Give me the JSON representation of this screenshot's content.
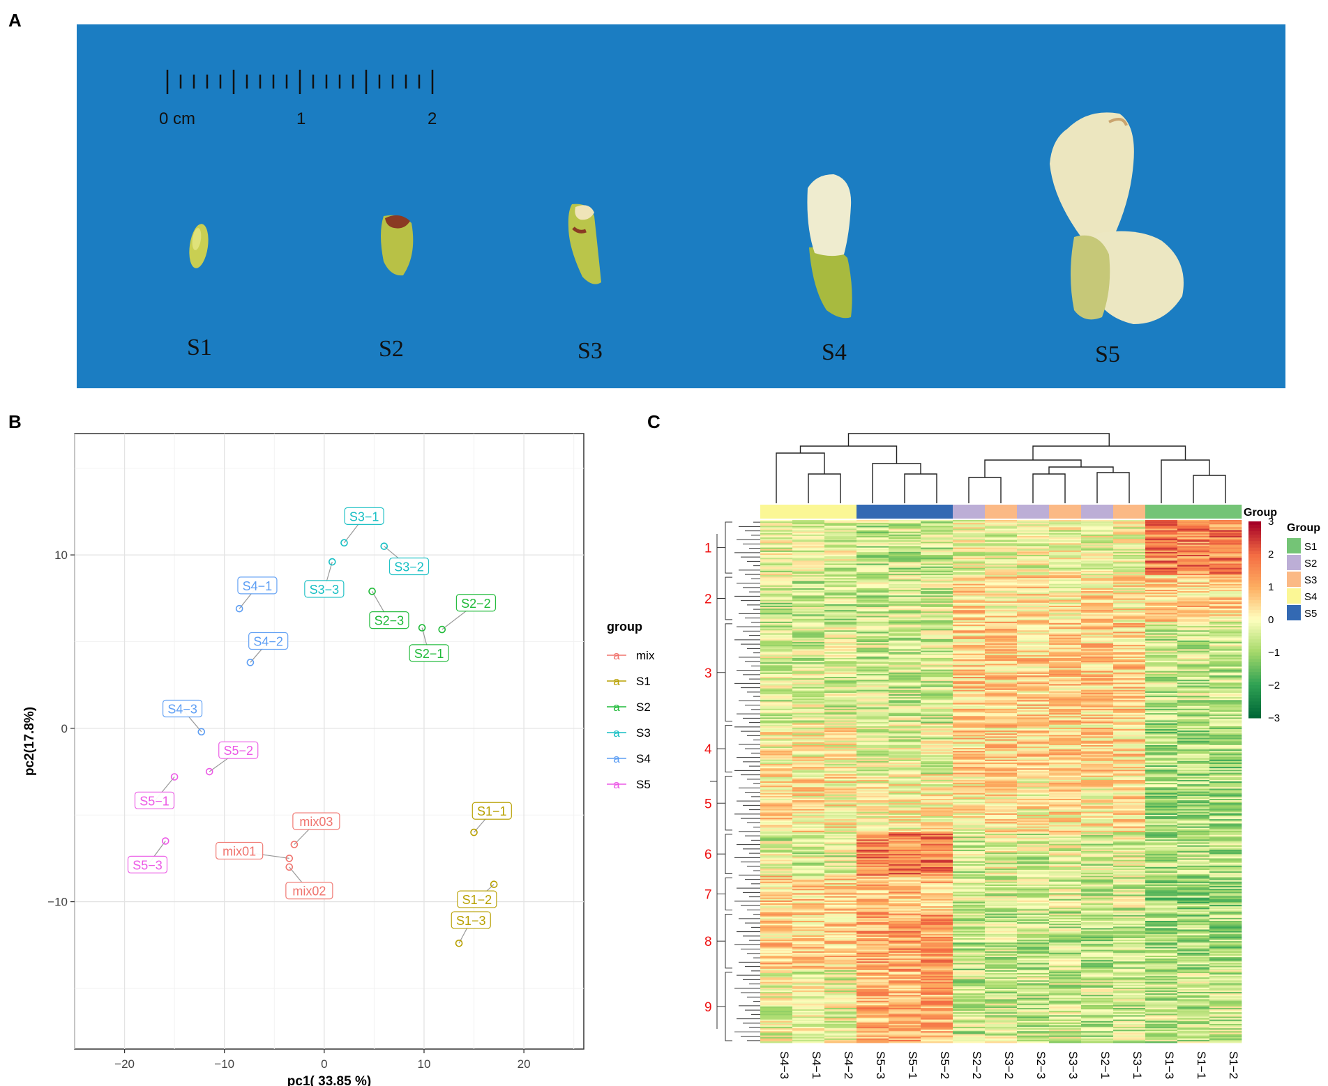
{
  "panels": {
    "a": "A",
    "b": "B",
    "c": "C"
  },
  "photo": {
    "background_color": "#1b7dc2",
    "scale": {
      "ticks": [
        "0 cm",
        "1",
        "2"
      ]
    },
    "stages": [
      "S1",
      "S2",
      "S3",
      "S4",
      "S5"
    ]
  },
  "chart_data": [
    {
      "type": "scatter",
      "title": "",
      "xlabel": "pc1( 33.85 %)",
      "ylabel": "pc2(17.8%)",
      "xlim": [
        -25,
        26
      ],
      "ylim": [
        -18.5,
        17
      ],
      "xticks": [
        -20,
        -10,
        0,
        10,
        20
      ],
      "yticks": [
        -10,
        0,
        10
      ],
      "grid": true,
      "legend": {
        "title": "group",
        "position": "right",
        "entries": [
          {
            "name": "mix",
            "symbol": "a",
            "color": "#f0736d"
          },
          {
            "name": "S1",
            "symbol": "a",
            "color": "#b8a000"
          },
          {
            "name": "S2",
            "symbol": "a",
            "color": "#1fba38"
          },
          {
            "name": "S3",
            "symbol": "a",
            "color": "#17bfc4"
          },
          {
            "name": "S4",
            "symbol": "a",
            "color": "#5d9ef4"
          },
          {
            "name": "S5",
            "symbol": "a",
            "color": "#ec59e6"
          }
        ]
      },
      "points": [
        {
          "label": "S3−1",
          "group": "S3",
          "x": 2.0,
          "y": 10.7,
          "lx": 4.0,
          "ly": 12.2
        },
        {
          "label": "S3−2",
          "group": "S3",
          "x": 6.0,
          "y": 10.5,
          "lx": 8.5,
          "ly": 9.3
        },
        {
          "label": "S3−3",
          "group": "S3",
          "x": 0.8,
          "y": 9.6,
          "lx": 0.0,
          "ly": 8.0
        },
        {
          "label": "S2−2",
          "group": "S2",
          "x": 11.8,
          "y": 5.7,
          "lx": 15.2,
          "ly": 7.2
        },
        {
          "label": "S2−3",
          "group": "S2",
          "x": 4.8,
          "y": 7.9,
          "lx": 6.5,
          "ly": 6.2
        },
        {
          "label": "S2−1",
          "group": "S2",
          "x": 9.8,
          "y": 5.8,
          "lx": 10.5,
          "ly": 4.3
        },
        {
          "label": "S4−1",
          "group": "S4",
          "x": -8.5,
          "y": 6.9,
          "lx": -6.7,
          "ly": 8.2
        },
        {
          "label": "S4−2",
          "group": "S4",
          "x": -7.4,
          "y": 3.8,
          "lx": -5.6,
          "ly": 5.0
        },
        {
          "label": "S4−3",
          "group": "S4",
          "x": -12.3,
          "y": -0.2,
          "lx": -14.2,
          "ly": 1.1
        },
        {
          "label": "S5−2",
          "group": "S5",
          "x": -11.5,
          "y": -2.5,
          "lx": -8.6,
          "ly": -1.3
        },
        {
          "label": "S5−1",
          "group": "S5",
          "x": -15.0,
          "y": -2.8,
          "lx": -17.0,
          "ly": -4.2
        },
        {
          "label": "S5−3",
          "group": "S5",
          "x": -15.9,
          "y": -6.5,
          "lx": -17.7,
          "ly": -7.9
        },
        {
          "label": "mix03",
          "group": "mix",
          "x": -3.0,
          "y": -6.7,
          "lx": -0.8,
          "ly": -5.4
        },
        {
          "label": "mix01",
          "group": "mix",
          "x": -3.5,
          "y": -7.5,
          "lx": -8.5,
          "ly": -7.1
        },
        {
          "label": "mix02",
          "group": "mix",
          "x": -3.5,
          "y": -8.0,
          "lx": -1.5,
          "ly": -9.4
        },
        {
          "label": "S1−1",
          "group": "S1",
          "x": 15.0,
          "y": -6.0,
          "lx": 16.8,
          "ly": -4.8
        },
        {
          "label": "S1−2",
          "group": "S1",
          "x": 17.0,
          "y": -9.0,
          "lx": 15.3,
          "ly": -9.9
        },
        {
          "label": "S1−3",
          "group": "S1",
          "x": 13.5,
          "y": -12.4,
          "lx": 14.7,
          "ly": -11.1
        }
      ]
    },
    {
      "type": "heatmap",
      "title": "",
      "columns": [
        "S4−3",
        "S4−1",
        "S4−2",
        "S5−3",
        "S5−1",
        "S5−2",
        "S2−2",
        "S3−2",
        "S2−3",
        "S3−3",
        "S2−1",
        "S3−1",
        "S1−3",
        "S1−1",
        "S1−2"
      ],
      "column_groups": [
        "S4",
        "S4",
        "S4",
        "S5",
        "S5",
        "S5",
        "S2",
        "S3",
        "S2",
        "S3",
        "S2",
        "S3",
        "S1",
        "S1",
        "S1"
      ],
      "group_colors": {
        "S1": "#74c476",
        "S2": "#bcaed6",
        "S3": "#fbb985",
        "S4": "#fbf795",
        "S5": "#3369b3"
      },
      "group_legend_title": "Group",
      "group_legend_entries": [
        "S1",
        "S2",
        "S3",
        "S4",
        "S5"
      ],
      "color_scale_title": "Group",
      "color_scale_ticks": [
        3,
        2,
        1,
        0,
        -1,
        -2,
        -3
      ],
      "color_range": [
        -3,
        3
      ],
      "row_clusters": [
        "1",
        "2",
        "3",
        "4",
        "5",
        "6",
        "7",
        "8",
        "9"
      ],
      "rows": 360
    }
  ]
}
